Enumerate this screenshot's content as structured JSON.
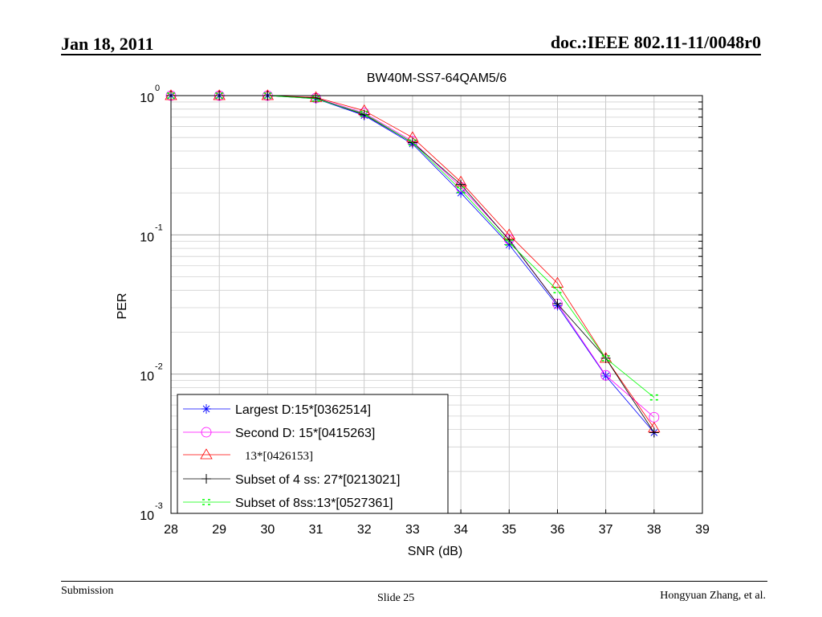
{
  "header": {
    "date": "Jan 18, 2011",
    "doc": "doc.:IEEE 802.11-11/0048r0"
  },
  "footer": {
    "left": "Submission",
    "center": "Slide 25",
    "right": "Hongyuan Zhang, et al."
  },
  "colors": {
    "blue": "#0000ff",
    "magenta": "#ff00ff",
    "red": "#ff0000",
    "black": "#000000",
    "green": "#00ff00"
  },
  "chart_data": {
    "type": "line",
    "title": "BW40M-SS7-64QAM5/6",
    "xlabel": "SNR (dB)",
    "ylabel": "PER",
    "xlim": [
      28,
      39
    ],
    "ylim": [
      0.001,
      1
    ],
    "yscale": "log",
    "grid": true,
    "legend_position": "bottom-left",
    "x": [
      28,
      29,
      30,
      31,
      32,
      33,
      34,
      35,
      36,
      37,
      38
    ],
    "xticks": [
      "28",
      "29",
      "30",
      "31",
      "32",
      "33",
      "34",
      "35",
      "36",
      "37",
      "38",
      "39"
    ],
    "yticks": [
      {
        "base": "10",
        "exp": "0",
        "value": 1
      },
      {
        "base": "10",
        "exp": "-1",
        "value": 0.1
      },
      {
        "base": "10",
        "exp": "-2",
        "value": 0.01
      },
      {
        "base": "10",
        "exp": "-3",
        "value": 0.001
      }
    ],
    "series": [
      {
        "name": "Largest D:15*[0362514]",
        "marker": "star",
        "color": "#0000ff",
        "values": [
          1,
          1,
          1,
          0.95,
          0.72,
          0.45,
          0.2,
          0.085,
          0.031,
          0.0097,
          0.0038
        ]
      },
      {
        "name": "Second D: 15*[0415263]",
        "marker": "circle",
        "color": "#ff00ff",
        "values": [
          1,
          1,
          1,
          0.96,
          0.75,
          0.47,
          0.22,
          0.093,
          0.032,
          0.0098,
          0.0049
        ]
      },
      {
        "name": "13*[0426153]",
        "marker": "triangle",
        "color": "#ff0000",
        "values": [
          1,
          1,
          1,
          0.97,
          0.78,
          0.5,
          0.24,
          0.1,
          0.045,
          0.013,
          0.0041
        ]
      },
      {
        "name": "Subset of 4 ss: 27*[0213021]",
        "marker": "plus",
        "color": "#000000",
        "values": [
          1,
          1,
          1,
          0.96,
          0.73,
          0.46,
          0.23,
          0.092,
          0.032,
          0.013,
          0.0038
        ]
      },
      {
        "name": "Subset of 8ss:13*[0527361]",
        "marker": "x",
        "color": "#00ff00",
        "values": [
          1,
          1,
          1,
          0.95,
          0.74,
          0.46,
          0.21,
          0.088,
          0.04,
          0.013,
          0.0068
        ]
      }
    ]
  }
}
